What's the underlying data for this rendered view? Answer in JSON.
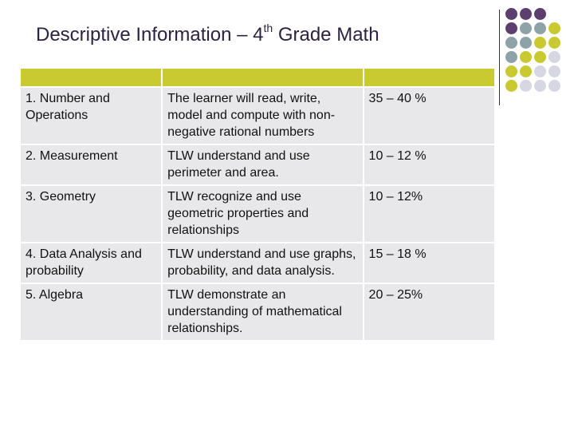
{
  "slide": {
    "title_before": "Descriptive Information – 4",
    "title_sup": "th",
    "title_after": " Grade Math"
  },
  "table": {
    "rows": [
      {
        "strand": "1. Number and Operations",
        "description": "The learner will read, write, model and compute with non-negative rational numbers",
        "percent": "35 – 40 %"
      },
      {
        "strand": "2. Measurement",
        "description": "TLW understand and use perimeter and area.",
        "percent": "10 – 12 %"
      },
      {
        "strand": "3. Geometry",
        "description": "TLW recognize and use geometric properties and relationships",
        "percent": "10 – 12%"
      },
      {
        "strand": "4. Data Analysis and probability",
        "description": "TLW understand and use graphs, probability, and data analysis.",
        "percent": "15 – 18 %"
      },
      {
        "strand": "5. Algebra",
        "description": "TLW demonstrate an understanding of mathematical relationships.",
        "percent": " 20 – 25%"
      }
    ]
  },
  "decoration": {
    "colors": {
      "purple": "#5c3f6e",
      "slate": "#8ea3a8",
      "olive": "#c9c932",
      "lavender": "#d7d6e3"
    },
    "dot_pattern": [
      [
        "purple",
        "purple",
        "purple",
        "empty"
      ],
      [
        "purple",
        "slate",
        "slate",
        "olive"
      ],
      [
        "slate",
        "slate",
        "olive",
        "olive"
      ],
      [
        "slate",
        "olive",
        "olive",
        "lavender"
      ],
      [
        "olive",
        "olive",
        "lavender",
        "lavender"
      ],
      [
        "olive",
        "lavender",
        "lavender",
        "lavender"
      ]
    ]
  }
}
